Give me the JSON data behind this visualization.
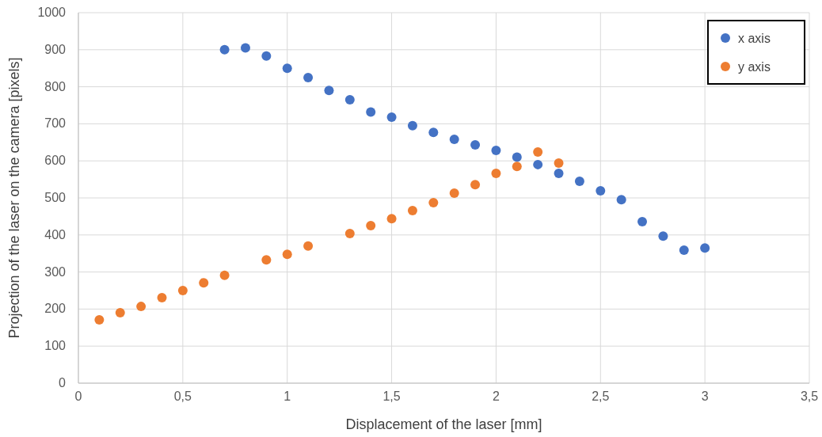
{
  "chart_data": {
    "type": "scatter",
    "xlabel": "Displacement of the laser [mm]",
    "ylabel": "Projection of the laser on the camera [pixels]",
    "xlim": [
      0,
      3.5
    ],
    "xticks": [
      0,
      {
        "value": 0.5,
        "label": "0,5"
      },
      1,
      {
        "value": 1.5,
        "label": "1,5"
      },
      2,
      {
        "value": 2.5,
        "label": "2,5"
      },
      3,
      {
        "value": 3.5,
        "label": "3,5"
      }
    ],
    "ylim": [
      0,
      1000
    ],
    "yticks": [
      0,
      100,
      200,
      300,
      400,
      500,
      600,
      700,
      800,
      900,
      1000
    ],
    "grid": true,
    "legend": "top right",
    "marker": "circle",
    "series": [
      {
        "name": "x axis",
        "color": "#4472c4",
        "x": [
          0.7,
          0.8,
          0.9,
          1.0,
          1.1,
          1.2,
          1.3,
          1.4,
          1.5,
          1.6,
          1.7,
          1.8,
          1.9,
          2.0,
          2.1,
          2.2,
          2.3,
          2.4,
          2.5,
          2.6,
          2.7,
          2.8,
          2.9,
          3.0
        ],
        "values": [
          900,
          905,
          883,
          850,
          825,
          790,
          765,
          732,
          718,
          695,
          677,
          658,
          643,
          628,
          610,
          590,
          566,
          545,
          519,
          495,
          436,
          397,
          359,
          365
        ]
      },
      {
        "name": "y axis",
        "color": "#ed7d31",
        "x": [
          0.1,
          0.2,
          0.3,
          0.4,
          0.5,
          0.6,
          0.7,
          0.9,
          1.0,
          1.1,
          1.3,
          1.4,
          1.5,
          1.6,
          1.7,
          1.8,
          1.9,
          2.0,
          2.1,
          2.2,
          2.3
        ],
        "values": [
          171,
          190,
          207,
          231,
          250,
          271,
          291,
          333,
          348,
          370,
          404,
          425,
          444,
          466,
          487,
          513,
          536,
          566,
          585,
          624,
          594
        ]
      }
    ]
  }
}
